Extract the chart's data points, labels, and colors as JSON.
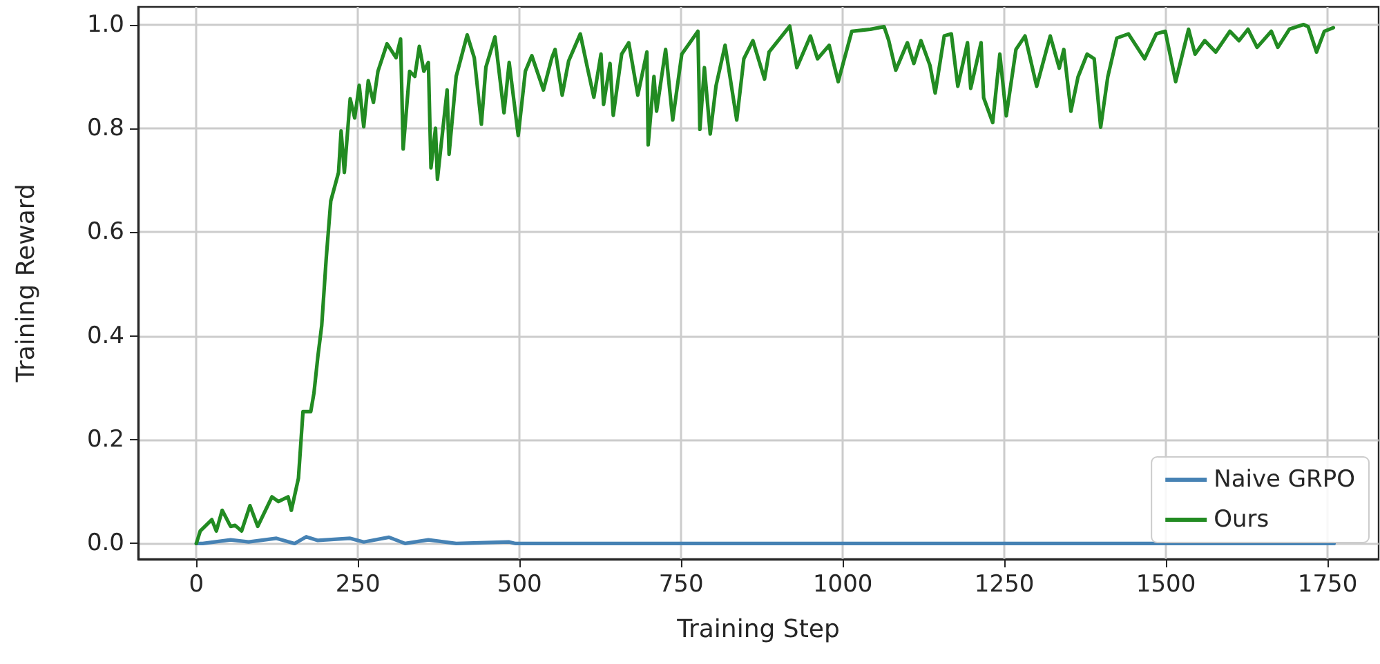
{
  "chart_data": {
    "type": "line",
    "xlabel": "Training Step",
    "ylabel": "Training Reward",
    "xlim": [
      -90,
      1829
    ],
    "ylim": [
      -0.03,
      1.034
    ],
    "xticks": [
      0,
      250,
      500,
      750,
      1000,
      1250,
      1500,
      1750
    ],
    "yticks": [
      {
        "value": 0,
        "label": "0.0"
      },
      {
        "value": 0.2,
        "label": "0.2"
      },
      {
        "value": 0.4,
        "label": "0.4"
      },
      {
        "value": 0.6,
        "label": "0.6"
      },
      {
        "value": 0.8,
        "label": "0.8"
      },
      {
        "value": 1,
        "label": "1.0"
      }
    ],
    "grid": true,
    "legend": "bottom right",
    "series": [
      {
        "name": "Naive GRPO",
        "color": "#4682b4",
        "x": [
          0,
          10,
          53,
          81,
          124,
          152,
          170,
          188,
          238,
          259,
          298,
          323,
          359,
          402,
          484,
          494,
          1760
        ],
        "values": [
          0,
          0,
          0.007,
          0.003,
          0.01,
          0,
          0.013,
          0.006,
          0.01,
          0.003,
          0.012,
          0,
          0.007,
          0,
          0.003,
          0,
          0
        ]
      },
      {
        "name": "Ours",
        "color": "#228b22",
        "x": [
          0,
          6,
          24,
          31,
          40,
          53,
          60,
          70,
          83,
          95,
          117,
          127,
          142,
          147,
          158,
          165,
          177,
          182,
          188,
          194,
          201,
          208,
          220,
          224,
          229,
          238,
          245,
          252,
          259,
          266,
          274,
          281,
          295,
          309,
          316,
          320,
          330,
          338,
          345,
          352,
          359,
          363,
          370,
          373,
          388,
          391,
          402,
          419,
          430,
          441,
          448,
          462,
          476,
          484,
          498,
          509,
          519,
          537,
          550,
          555,
          566,
          576,
          594,
          605,
          615,
          626,
          630,
          640,
          645,
          658,
          669,
          683,
          697,
          699,
          708,
          712,
          726,
          737,
          751,
          776,
          779,
          786,
          795,
          804,
          818,
          836,
          847,
          861,
          879,
          886,
          918,
          929,
          950,
          961,
          979,
          993,
          1014,
          1043,
          1064,
          1071,
          1082,
          1100,
          1110,
          1121,
          1135,
          1143,
          1157,
          1168,
          1178,
          1193,
          1198,
          1214,
          1218,
          1232,
          1243,
          1253,
          1268,
          1282,
          1300,
          1321,
          1335,
          1342,
          1353,
          1364,
          1378,
          1389,
          1399,
          1410,
          1424,
          1442,
          1467,
          1485,
          1499,
          1515,
          1535,
          1545,
          1560,
          1577,
          1599,
          1613,
          1627,
          1641,
          1663,
          1673,
          1691,
          1713,
          1720,
          1733,
          1745,
          1759
        ],
        "values": [
          0,
          0.024,
          0.046,
          0.024,
          0.064,
          0.033,
          0.035,
          0.024,
          0.073,
          0.033,
          0.09,
          0.081,
          0.09,
          0.064,
          0.126,
          0.254,
          0.254,
          0.29,
          0.36,
          0.42,
          0.55,
          0.66,
          0.715,
          0.795,
          0.715,
          0.857,
          0.82,
          0.883,
          0.803,
          0.892,
          0.85,
          0.91,
          0.963,
          0.936,
          0.972,
          0.76,
          0.91,
          0.9,
          0.958,
          0.91,
          0.927,
          0.724,
          0.8,
          0.702,
          0.874,
          0.75,
          0.9,
          0.98,
          0.936,
          0.808,
          0.918,
          0.976,
          0.83,
          0.927,
          0.786,
          0.91,
          0.94,
          0.874,
          0.936,
          0.952,
          0.864,
          0.93,
          0.982,
          0.917,
          0.86,
          0.943,
          0.846,
          0.925,
          0.825,
          0.943,
          0.965,
          0.864,
          0.947,
          0.768,
          0.9,
          0.833,
          0.952,
          0.816,
          0.943,
          0.987,
          0.798,
          0.917,
          0.789,
          0.882,
          0.96,
          0.816,
          0.934,
          0.969,
          0.895,
          0.947,
          0.997,
          0.917,
          0.978,
          0.934,
          0.96,
          0.89,
          0.987,
          0.991,
          0.996,
          0.97,
          0.912,
          0.965,
          0.925,
          0.969,
          0.921,
          0.868,
          0.978,
          0.982,
          0.881,
          0.965,
          0.877,
          0.965,
          0.859,
          0.811,
          0.943,
          0.824,
          0.952,
          0.978,
          0.881,
          0.978,
          0.916,
          0.952,
          0.833,
          0.899,
          0.943,
          0.934,
          0.802,
          0.899,
          0.974,
          0.982,
          0.934,
          0.982,
          0.987,
          0.89,
          0.991,
          0.943,
          0.969,
          0.947,
          0.987,
          0.969,
          0.991,
          0.956,
          0.987,
          0.956,
          0.991,
          1.0,
          0.996,
          0.947,
          0.987,
          0.994
        ]
      }
    ]
  }
}
